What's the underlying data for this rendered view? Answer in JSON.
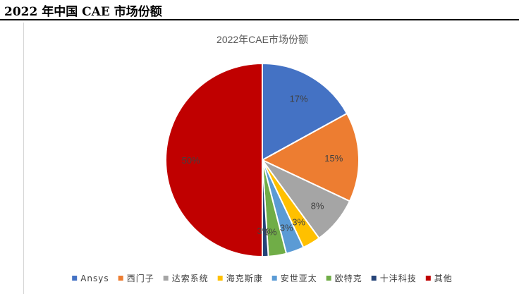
{
  "page": {
    "title": "2022 年中国 CAE 市场份额"
  },
  "chart_data": {
    "type": "pie",
    "title": "2022年CAE市场份额",
    "start_angle_deg": 0,
    "direction": "clockwise",
    "legend_position": "bottom",
    "slices": [
      {
        "name": "Ansys",
        "value": 17,
        "label": "17%",
        "color": "#4472c4"
      },
      {
        "name": "西门子",
        "value": 15,
        "label": "15%",
        "color": "#ed7d31"
      },
      {
        "name": "达索系统",
        "value": 8,
        "label": "8%",
        "color": "#a5a5a5"
      },
      {
        "name": "海克斯康",
        "value": 3,
        "label": "3%",
        "color": "#ffc000"
      },
      {
        "name": "安世亚太",
        "value": 3,
        "label": "3%",
        "color": "#5b9bd5"
      },
      {
        "name": "欧特克",
        "value": 3,
        "label": "3%",
        "color": "#70ad47"
      },
      {
        "name": "十沣科技",
        "value": 1,
        "label": "1%",
        "color": "#264478"
      },
      {
        "name": "其他",
        "value": 50,
        "label": "50%",
        "color": "#c00000"
      }
    ]
  }
}
